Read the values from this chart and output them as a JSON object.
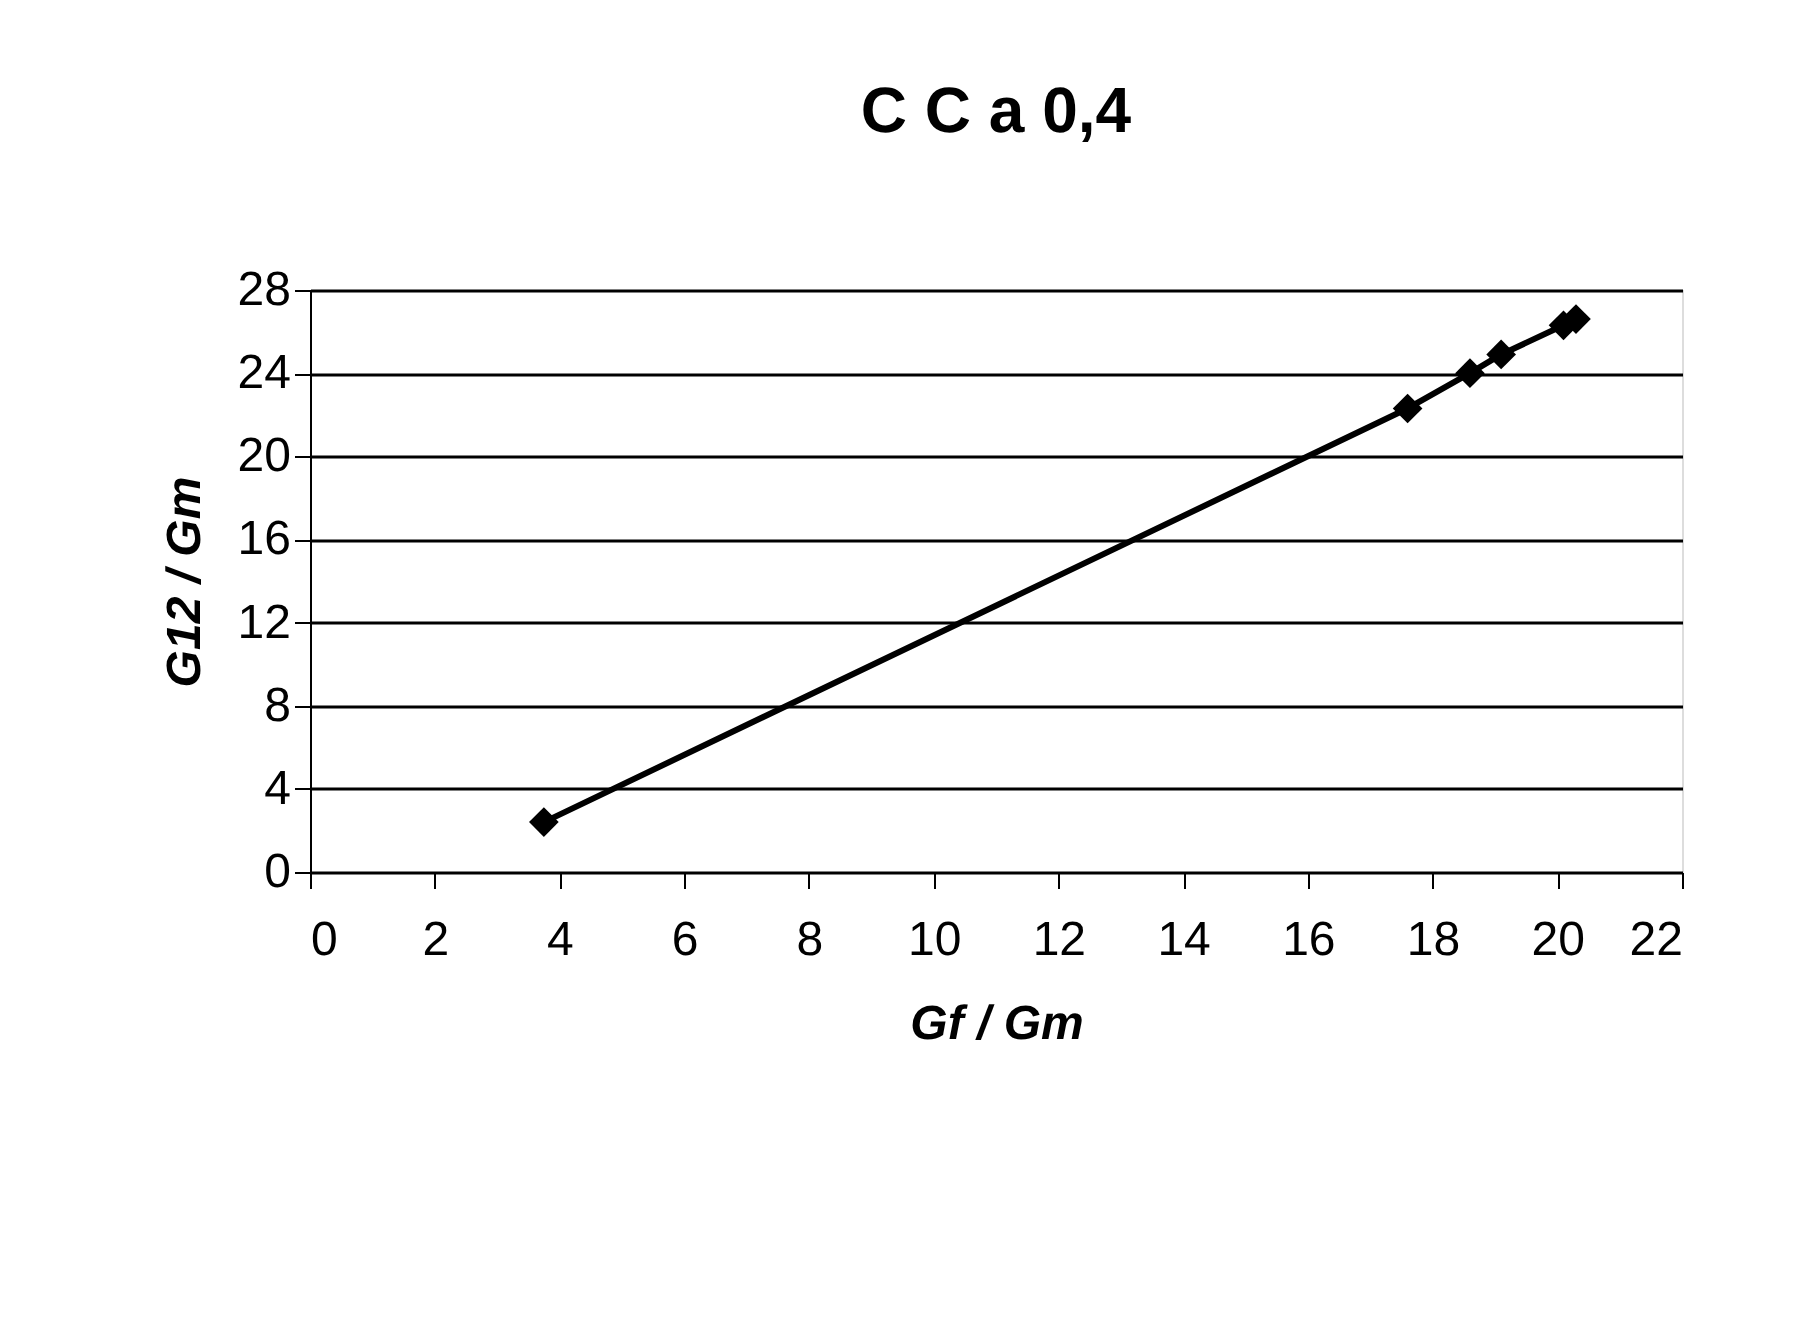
{
  "chart_data": {
    "type": "line",
    "title": "C C a 0,4",
    "xlabel": "Gf  /  Gm",
    "ylabel": "G12  /  Gm",
    "x": [
      3.75,
      17.6,
      18.6,
      19.1,
      20.1,
      20.3
    ],
    "series": [
      {
        "color": "#000000",
        "values": [
          2.4,
          22.3,
          24.0,
          24.9,
          26.3,
          26.6
        ]
      }
    ],
    "xlim": [
      0,
      22
    ],
    "xticks": [
      0,
      2,
      4,
      6,
      8,
      10,
      12,
      14,
      16,
      18,
      20,
      22
    ],
    "ylim": [
      0,
      28
    ],
    "yticks": [
      0,
      4,
      8,
      12,
      16,
      20,
      24,
      28
    ],
    "grid": "y",
    "marker": "diamond",
    "line_style": "solid",
    "legend": false
  }
}
